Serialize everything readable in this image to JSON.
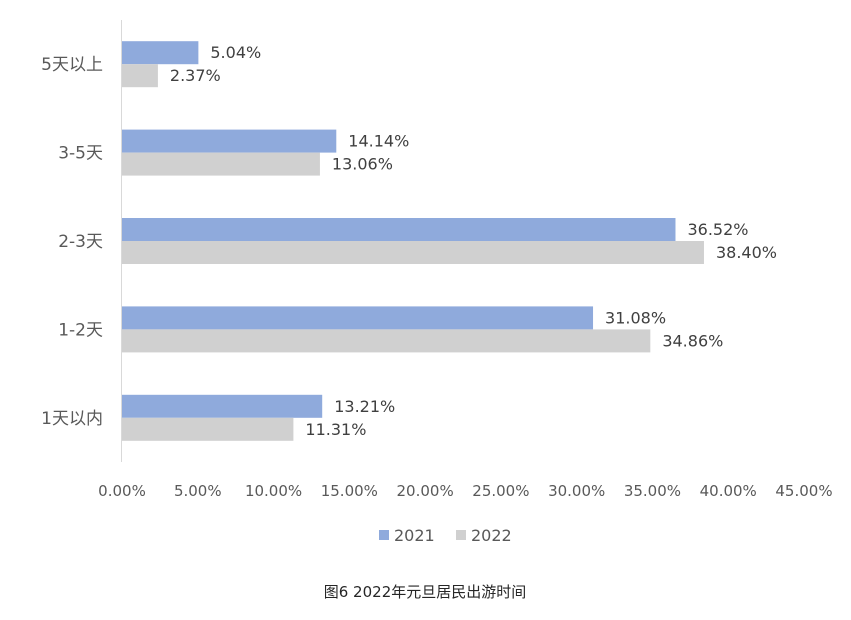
{
  "chart_data": {
    "type": "bar",
    "orientation": "horizontal",
    "categories": [
      "5天以上",
      "3-5天",
      "2-3天",
      "1-2天",
      "1天以内"
    ],
    "series": [
      {
        "name": "2021",
        "values": [
          5.04,
          14.14,
          36.52,
          31.08,
          13.21
        ],
        "labels": [
          "5.04%",
          "14.14%",
          "36.52%",
          "31.08%",
          "13.21%"
        ],
        "color": "#8faadc"
      },
      {
        "name": "2022",
        "values": [
          2.37,
          13.06,
          38.4,
          34.86,
          11.31
        ],
        "labels": [
          "2.37%",
          "13.06%",
          "38.40%",
          "34.86%",
          "11.31%"
        ],
        "color": "#d0d0d0"
      }
    ],
    "xlim": [
      0,
      45
    ],
    "xticks": [
      "0.00%",
      "5.00%",
      "10.00%",
      "15.00%",
      "20.00%",
      "25.00%",
      "30.00%",
      "35.00%",
      "40.00%",
      "45.00%"
    ],
    "grid": false,
    "legend_position": "bottom",
    "caption": "图6  2022年元旦居民出游时间"
  }
}
